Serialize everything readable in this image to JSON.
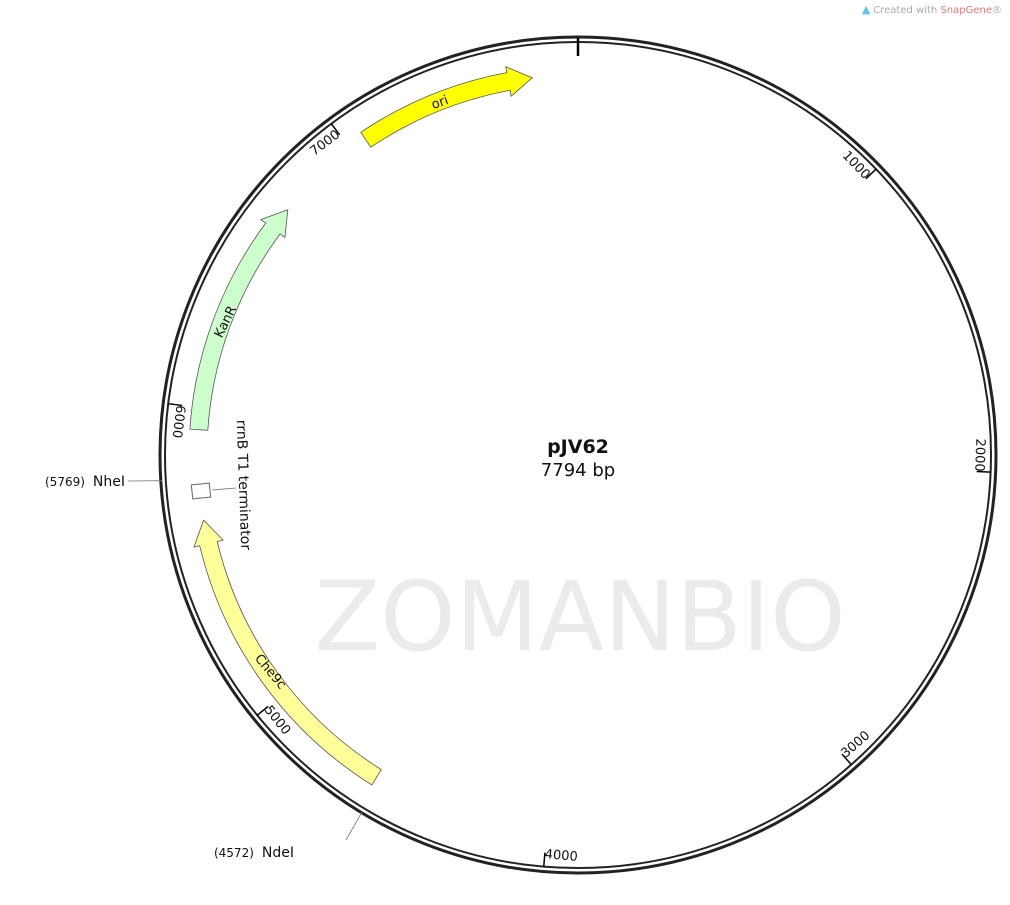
{
  "credit": {
    "prefix": "Created with ",
    "brand": "SnapGene",
    "suffix": "®"
  },
  "watermark": "ZOMANBIO",
  "plasmid": {
    "name": "pJV62",
    "length_label": "7794 bp",
    "length": 7794
  },
  "ticks": [
    {
      "pos": 1000,
      "label": "1000"
    },
    {
      "pos": 2000,
      "label": "2000"
    },
    {
      "pos": 3000,
      "label": "3000"
    },
    {
      "pos": 4000,
      "label": "4000"
    },
    {
      "pos": 5000,
      "label": "5000"
    },
    {
      "pos": 6000,
      "label": "6000"
    },
    {
      "pos": 7000,
      "label": "7000"
    }
  ],
  "features": [
    {
      "name": "ori",
      "start": 7059,
      "end": 7644,
      "color": "#ffff00",
      "type": "arrow"
    },
    {
      "name": "KanR",
      "start": 5928,
      "end": 6716,
      "color": "#ccffcc",
      "type": "arrow"
    },
    {
      "name": "Che9c",
      "start": 4590,
      "end": 5632,
      "color": "#ffff99",
      "type": "arrow"
    },
    {
      "name": "rrnB T1 terminator",
      "start": 5722,
      "end": 5738,
      "color": "#ffffff",
      "type": "box"
    }
  ],
  "sites": [
    {
      "name": "NheI",
      "pos": 5769,
      "pos_label": "(5769)"
    },
    {
      "name": "NdeI",
      "pos": 4572,
      "pos_label": "(4572)"
    }
  ]
}
